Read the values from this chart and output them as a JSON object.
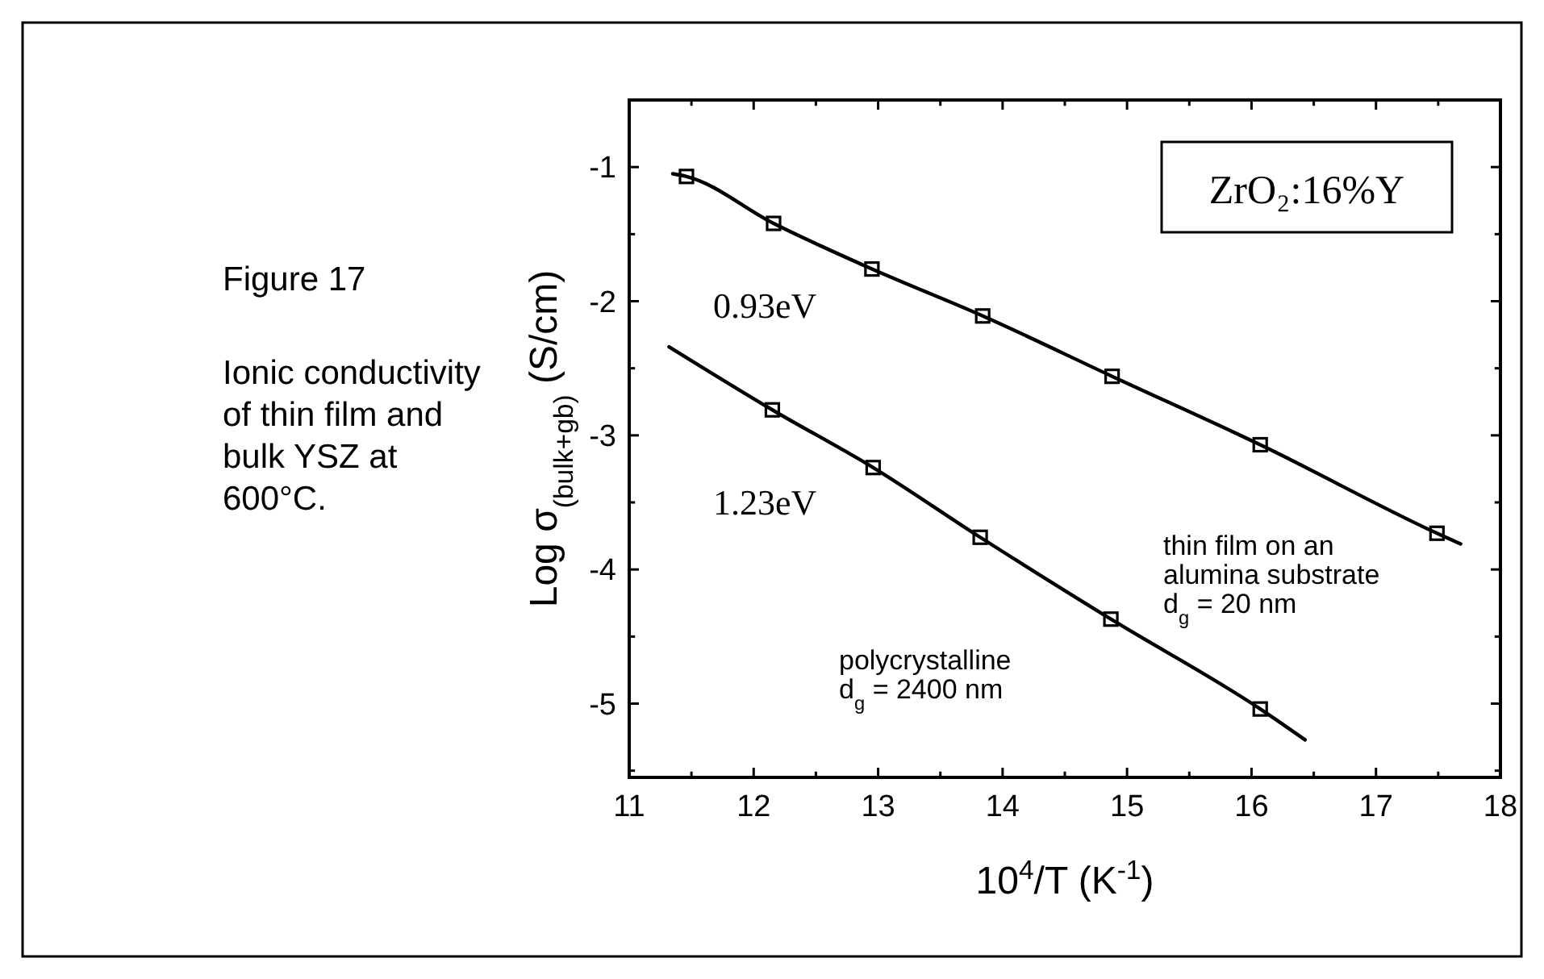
{
  "chart_data": {
    "type": "scatter",
    "title": "Figure 17",
    "subtitle": "Ionic conductivity\nof thin film and\nbulk YSZ at\n600°C.",
    "xlabel": "10$^{4}$/T (K$^{-1}$)",
    "ylabel": "Log σ$_{(bulk+gb)}$ (S/cm)",
    "xlim": [
      11,
      18
    ],
    "ylim": [
      -5.55,
      -0.5
    ],
    "xticks": [
      11,
      {
        "value": 11.5,
        "label": null
      },
      12,
      {
        "value": 12.5,
        "label": null
      },
      13,
      {
        "value": 13.5,
        "label": null
      },
      14,
      {
        "value": 14.5,
        "label": null
      },
      15,
      {
        "value": 15.5,
        "label": null
      },
      16,
      {
        "value": 16.5,
        "label": null
      },
      17,
      {
        "value": 17.5,
        "label": null
      },
      18
    ],
    "yticks": [
      {
        "value": -5.5,
        "label": null
      },
      -5,
      {
        "value": -4.5,
        "label": null
      },
      -4,
      {
        "value": -3.5,
        "label": null
      },
      -3,
      {
        "value": -2.5,
        "label": null
      },
      -2,
      {
        "value": -1.5,
        "label": null
      },
      -1
    ],
    "series": [
      {
        "type": "line",
        "color": "#000000",
        "x": [
          11.35,
          11.46,
          12.16,
          12.95,
          13.84,
          14.88,
          16.07,
          17.49,
          17.68
        ],
        "values": [
          -1.05,
          -1.07,
          -1.42,
          -1.76,
          -2.11,
          -2.56,
          -3.07,
          -3.73,
          -3.81
        ]
      },
      {
        "type": "line",
        "color": "#000000",
        "x": [
          11.32,
          12.15,
          12.96,
          13.82,
          14.87,
          16.07,
          16.43
        ],
        "values": [
          -2.34,
          -2.81,
          -3.24,
          -3.76,
          -4.37,
          -5.04,
          -5.27
        ]
      },
      {
        "color": "#000000",
        "marker": "square",
        "x": [
          11.46,
          12.16,
          12.95,
          13.84,
          14.88,
          16.07,
          17.49
        ],
        "values": [
          -1.07,
          -1.42,
          -1.76,
          -2.11,
          -2.56,
          -3.07,
          -3.73
        ]
      },
      {
        "color": "#000000",
        "marker": "square",
        "x": [
          12.15,
          12.96,
          13.82,
          14.87,
          16.07
        ],
        "values": [
          -2.81,
          -3.24,
          -3.76,
          -4.37,
          -5.04
        ]
      }
    ],
    "annotations": [
      "ZrO₂:16%Y",
      "0.93eV",
      "1.23eV",
      "thin film on an\nalumina substrate\nd$_{g}$ = 20 nm",
      "polycrystalline\nd$_{g}$ = 2400 nm"
    ]
  }
}
